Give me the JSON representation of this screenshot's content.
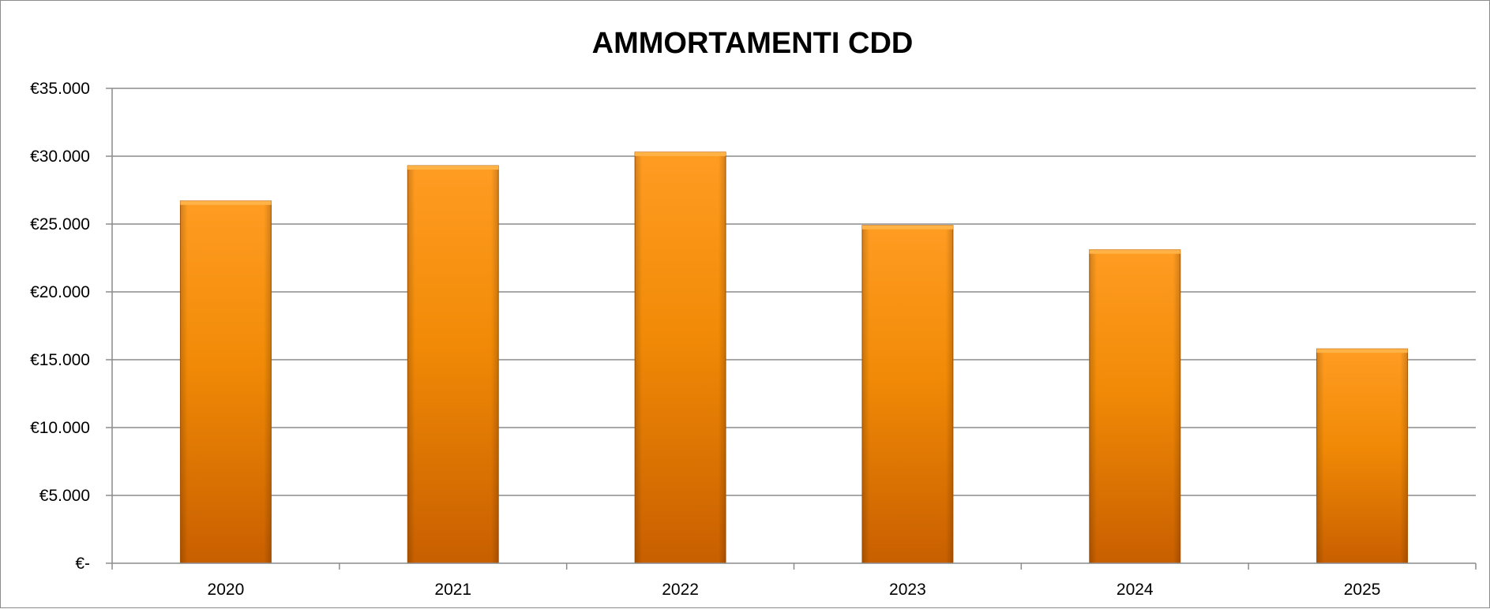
{
  "chart_data": {
    "type": "bar",
    "title": "AMMORTAMENTI CDD",
    "xlabel": "",
    "ylabel": "",
    "categories": [
      "2020",
      "2021",
      "2022",
      "2023",
      "2024",
      "2025"
    ],
    "series": [
      {
        "values": [
          26700,
          29300,
          30300,
          24900,
          23100,
          15800
        ]
      }
    ],
    "ylim": [
      0,
      35000
    ],
    "y_ticks": [
      0,
      5000,
      10000,
      15000,
      20000,
      25000,
      30000,
      35000
    ],
    "y_tick_labels": [
      "€-",
      "€5.000",
      "€10.000",
      "€15.000",
      "€20.000",
      "€25.000",
      "€30.000",
      "€35.000"
    ],
    "grid": true,
    "legend": "none",
    "colors": {
      "bar_top": "#ff9c22",
      "bar_mid": "#f18a06",
      "bar_bottom": "#c85f00",
      "gridline": "#8c8c8c",
      "axis": "#8c8c8c"
    }
  }
}
